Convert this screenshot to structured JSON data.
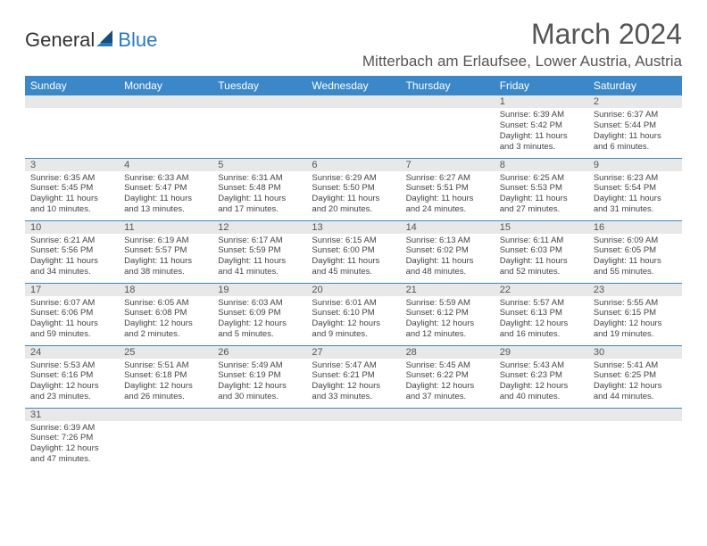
{
  "logo": {
    "part1": "General",
    "part2": "Blue"
  },
  "title": "March 2024",
  "location": "Mitterbach am Erlaufsee, Lower Austria, Austria",
  "colors": {
    "header_bg": "#3b87c8",
    "header_text": "#ffffff",
    "daynum_bg": "#e8e8e8",
    "border": "#3b87c8",
    "text": "#444444",
    "title_text": "#555555"
  },
  "weekdays": [
    "Sunday",
    "Monday",
    "Tuesday",
    "Wednesday",
    "Thursday",
    "Friday",
    "Saturday"
  ],
  "weeks": [
    [
      null,
      null,
      null,
      null,
      null,
      {
        "n": "1",
        "sr": "Sunrise: 6:39 AM",
        "ss": "Sunset: 5:42 PM",
        "dl": "Daylight: 11 hours and 3 minutes."
      },
      {
        "n": "2",
        "sr": "Sunrise: 6:37 AM",
        "ss": "Sunset: 5:44 PM",
        "dl": "Daylight: 11 hours and 6 minutes."
      }
    ],
    [
      {
        "n": "3",
        "sr": "Sunrise: 6:35 AM",
        "ss": "Sunset: 5:45 PM",
        "dl": "Daylight: 11 hours and 10 minutes."
      },
      {
        "n": "4",
        "sr": "Sunrise: 6:33 AM",
        "ss": "Sunset: 5:47 PM",
        "dl": "Daylight: 11 hours and 13 minutes."
      },
      {
        "n": "5",
        "sr": "Sunrise: 6:31 AM",
        "ss": "Sunset: 5:48 PM",
        "dl": "Daylight: 11 hours and 17 minutes."
      },
      {
        "n": "6",
        "sr": "Sunrise: 6:29 AM",
        "ss": "Sunset: 5:50 PM",
        "dl": "Daylight: 11 hours and 20 minutes."
      },
      {
        "n": "7",
        "sr": "Sunrise: 6:27 AM",
        "ss": "Sunset: 5:51 PM",
        "dl": "Daylight: 11 hours and 24 minutes."
      },
      {
        "n": "8",
        "sr": "Sunrise: 6:25 AM",
        "ss": "Sunset: 5:53 PM",
        "dl": "Daylight: 11 hours and 27 minutes."
      },
      {
        "n": "9",
        "sr": "Sunrise: 6:23 AM",
        "ss": "Sunset: 5:54 PM",
        "dl": "Daylight: 11 hours and 31 minutes."
      }
    ],
    [
      {
        "n": "10",
        "sr": "Sunrise: 6:21 AM",
        "ss": "Sunset: 5:56 PM",
        "dl": "Daylight: 11 hours and 34 minutes."
      },
      {
        "n": "11",
        "sr": "Sunrise: 6:19 AM",
        "ss": "Sunset: 5:57 PM",
        "dl": "Daylight: 11 hours and 38 minutes."
      },
      {
        "n": "12",
        "sr": "Sunrise: 6:17 AM",
        "ss": "Sunset: 5:59 PM",
        "dl": "Daylight: 11 hours and 41 minutes."
      },
      {
        "n": "13",
        "sr": "Sunrise: 6:15 AM",
        "ss": "Sunset: 6:00 PM",
        "dl": "Daylight: 11 hours and 45 minutes."
      },
      {
        "n": "14",
        "sr": "Sunrise: 6:13 AM",
        "ss": "Sunset: 6:02 PM",
        "dl": "Daylight: 11 hours and 48 minutes."
      },
      {
        "n": "15",
        "sr": "Sunrise: 6:11 AM",
        "ss": "Sunset: 6:03 PM",
        "dl": "Daylight: 11 hours and 52 minutes."
      },
      {
        "n": "16",
        "sr": "Sunrise: 6:09 AM",
        "ss": "Sunset: 6:05 PM",
        "dl": "Daylight: 11 hours and 55 minutes."
      }
    ],
    [
      {
        "n": "17",
        "sr": "Sunrise: 6:07 AM",
        "ss": "Sunset: 6:06 PM",
        "dl": "Daylight: 11 hours and 59 minutes."
      },
      {
        "n": "18",
        "sr": "Sunrise: 6:05 AM",
        "ss": "Sunset: 6:08 PM",
        "dl": "Daylight: 12 hours and 2 minutes."
      },
      {
        "n": "19",
        "sr": "Sunrise: 6:03 AM",
        "ss": "Sunset: 6:09 PM",
        "dl": "Daylight: 12 hours and 5 minutes."
      },
      {
        "n": "20",
        "sr": "Sunrise: 6:01 AM",
        "ss": "Sunset: 6:10 PM",
        "dl": "Daylight: 12 hours and 9 minutes."
      },
      {
        "n": "21",
        "sr": "Sunrise: 5:59 AM",
        "ss": "Sunset: 6:12 PM",
        "dl": "Daylight: 12 hours and 12 minutes."
      },
      {
        "n": "22",
        "sr": "Sunrise: 5:57 AM",
        "ss": "Sunset: 6:13 PM",
        "dl": "Daylight: 12 hours and 16 minutes."
      },
      {
        "n": "23",
        "sr": "Sunrise: 5:55 AM",
        "ss": "Sunset: 6:15 PM",
        "dl": "Daylight: 12 hours and 19 minutes."
      }
    ],
    [
      {
        "n": "24",
        "sr": "Sunrise: 5:53 AM",
        "ss": "Sunset: 6:16 PM",
        "dl": "Daylight: 12 hours and 23 minutes."
      },
      {
        "n": "25",
        "sr": "Sunrise: 5:51 AM",
        "ss": "Sunset: 6:18 PM",
        "dl": "Daylight: 12 hours and 26 minutes."
      },
      {
        "n": "26",
        "sr": "Sunrise: 5:49 AM",
        "ss": "Sunset: 6:19 PM",
        "dl": "Daylight: 12 hours and 30 minutes."
      },
      {
        "n": "27",
        "sr": "Sunrise: 5:47 AM",
        "ss": "Sunset: 6:21 PM",
        "dl": "Daylight: 12 hours and 33 minutes."
      },
      {
        "n": "28",
        "sr": "Sunrise: 5:45 AM",
        "ss": "Sunset: 6:22 PM",
        "dl": "Daylight: 12 hours and 37 minutes."
      },
      {
        "n": "29",
        "sr": "Sunrise: 5:43 AM",
        "ss": "Sunset: 6:23 PM",
        "dl": "Daylight: 12 hours and 40 minutes."
      },
      {
        "n": "30",
        "sr": "Sunrise: 5:41 AM",
        "ss": "Sunset: 6:25 PM",
        "dl": "Daylight: 12 hours and 44 minutes."
      }
    ],
    [
      {
        "n": "31",
        "sr": "Sunrise: 6:39 AM",
        "ss": "Sunset: 7:26 PM",
        "dl": "Daylight: 12 hours and 47 minutes."
      },
      null,
      null,
      null,
      null,
      null,
      null
    ]
  ]
}
